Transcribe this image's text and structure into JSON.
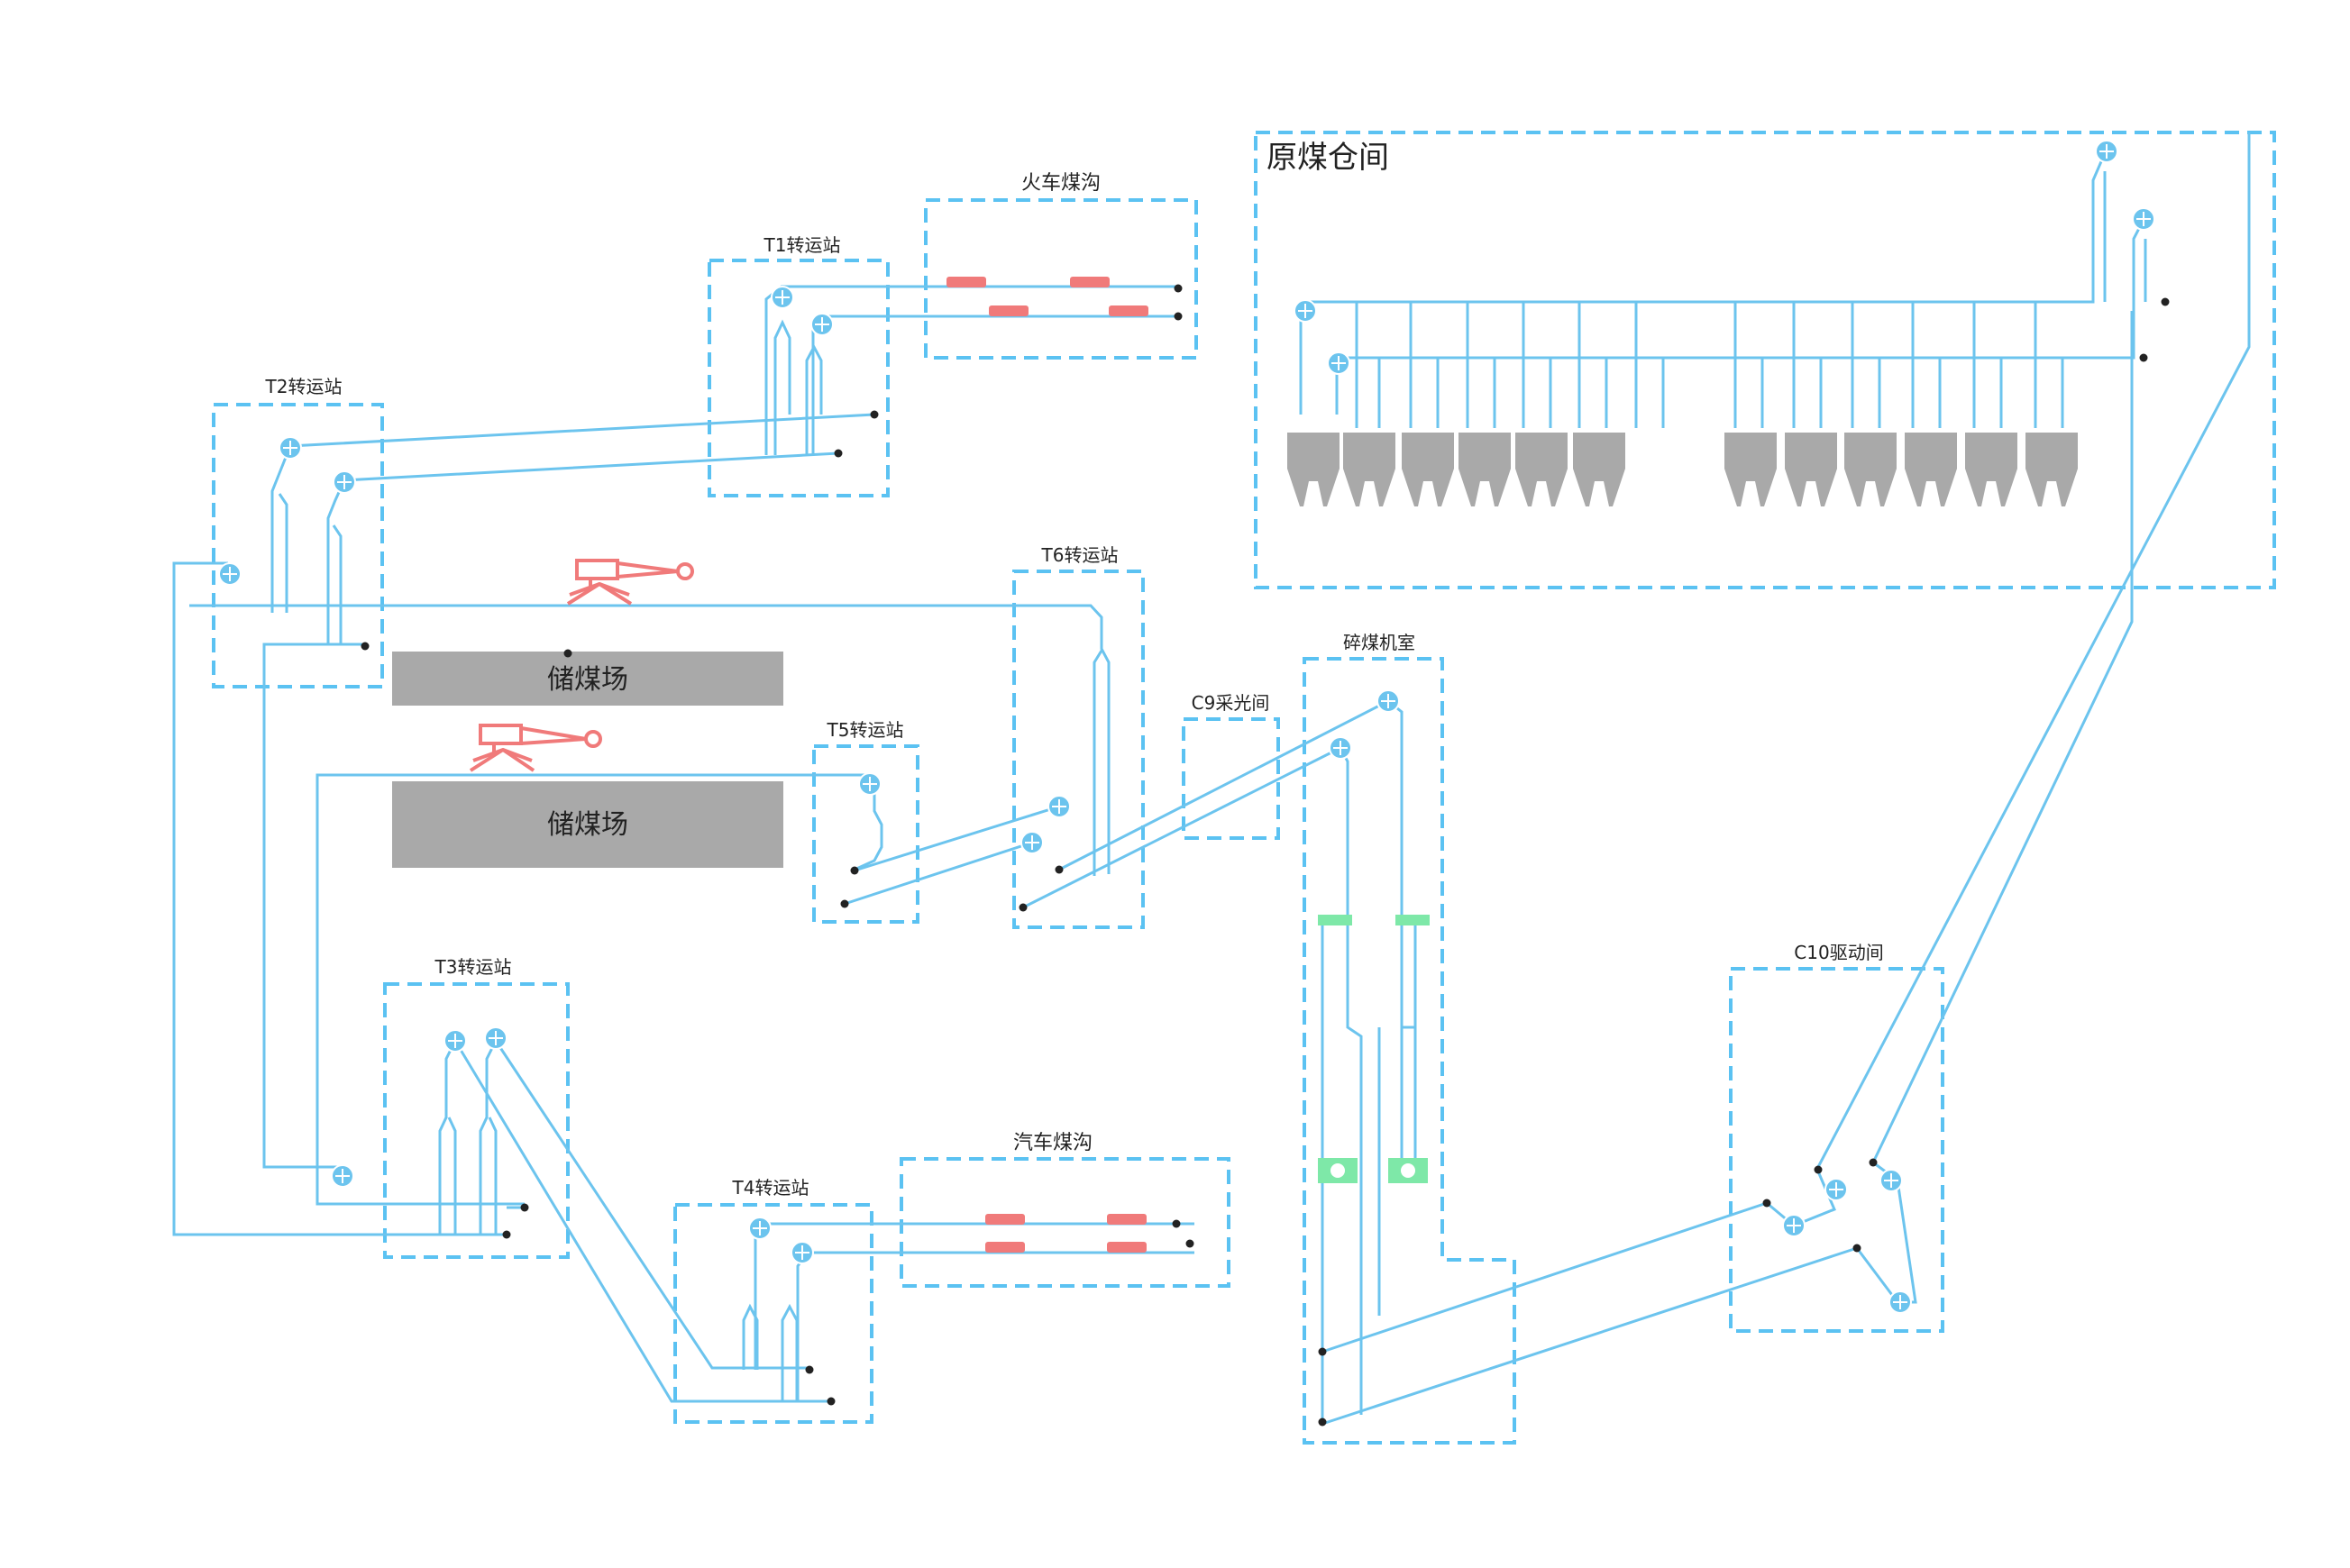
{
  "diagram": {
    "title": "原煤仓间",
    "stations": {
      "t1": "T1转运站",
      "t2": "T2转运站",
      "t3": "T3转运站",
      "t4": "T4转运站",
      "t5": "T5转运站",
      "t6": "T6转运站",
      "train_pit": "火车煤沟",
      "truck_pit": "汽车煤沟",
      "c9": "C9采光间",
      "crusher": "碎煤机室",
      "c10": "C10驱动间"
    },
    "yards": [
      "储煤场",
      "储煤场"
    ],
    "colors": {
      "belt": "#6cc4ee",
      "zone_border": "#5bc2f2",
      "equipment": "#f07a7a",
      "yard": "#a9a9a9",
      "screen": "#7ee8a8"
    }
  }
}
